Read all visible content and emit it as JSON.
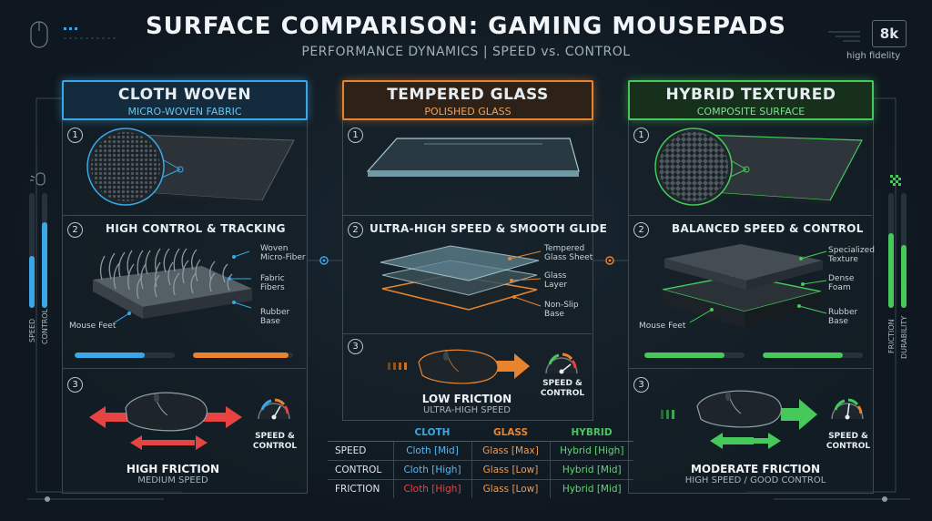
{
  "title": "SURFACE COMPARISON: GAMING MOUSEPADS",
  "subtitle": "PERFORMANCE DYNAMICS | SPEED vs. CONTROL",
  "badge": "8k",
  "badge_caption": "high fidelity",
  "colors": {
    "cloth": "#3aa7e6",
    "glass": "#e8842e",
    "hybrid": "#46c95a",
    "friction_red": "#e84343"
  },
  "left_side": {
    "speed": "SPEED",
    "control": "CONTROL",
    "speed_level": 0.45,
    "control_level": 0.75
  },
  "right_side": {
    "friction": "FRICTION",
    "durability": "DURABILITY",
    "friction_level": 0.65,
    "durability_level": 0.55
  },
  "panels": {
    "cloth": {
      "title": "CLOTH WOVEN",
      "subtitle": "MICRO-WOVEN FABRIC",
      "n1": "1",
      "n2": "2",
      "n3": "3",
      "section2": "HIGH CONTROL & TRACKING",
      "labels": {
        "a1": "Woven",
        "a2": "Micro-Fiber",
        "b1": "Fabric",
        "b2": "Fibers",
        "c1": "Rubber",
        "c2": "Base",
        "feet": "Mouse Feet"
      },
      "bar_speed": 0.7,
      "bar_control": 0.95,
      "gauge1": "SPEED &",
      "gauge2": "CONTROL",
      "result": "HIGH FRICTION",
      "result_sub": "MEDIUM SPEED"
    },
    "glass": {
      "title": "TEMPERED GLASS",
      "subtitle": "POLISHED GLASS",
      "n1": "1",
      "n2": "2",
      "n3": "3",
      "section2": "ULTRA-HIGH SPEED & SMOOTH GLIDE",
      "labels": {
        "a1": "Tempered",
        "a2": "Glass Sheet",
        "b1": "Glass",
        "b2": "Layer",
        "c1": "Non-Slip",
        "c2": "Base"
      },
      "gauge1": "SPEED &",
      "gauge2": "CONTROL",
      "result": "LOW FRICTION",
      "result_sub": "ULTRA-HIGH SPEED"
    },
    "hybrid": {
      "title": "HYBRID TEXTURED",
      "subtitle": "COMPOSITE SURFACE",
      "n1": "1",
      "n2": "2",
      "n3": "3",
      "section2": "BALANCED SPEED & CONTROL",
      "labels": {
        "a1": "Specialized",
        "a2": "Texture",
        "b1": "Dense",
        "b2": "Foam",
        "c1": "Rubber",
        "c2": "Base",
        "feet": "Mouse Feet"
      },
      "bar_speed": 0.8,
      "bar_control": 0.8,
      "gauge1": "SPEED &",
      "gauge2": "CONTROL",
      "result": "MODERATE FRICTION",
      "result_sub": "HIGH SPEED / GOOD CONTROL"
    }
  },
  "table": {
    "headers": [
      "",
      "CLOTH",
      "GLASS",
      "HYBRID"
    ],
    "rows": [
      {
        "label": "SPEED",
        "cloth": "Cloth [Mid]",
        "glass": "Glass [Max]",
        "hybrid": "Hybrid [High]"
      },
      {
        "label": "CONTROL",
        "cloth": "Cloth [High]",
        "glass": "Glass [Low]",
        "hybrid": "Hybrid [Mid]"
      },
      {
        "label": "FRICTION",
        "cloth": "Cloth [High]",
        "glass": "Glass [Low]",
        "hybrid": "Hybrid [Mid]"
      }
    ]
  }
}
